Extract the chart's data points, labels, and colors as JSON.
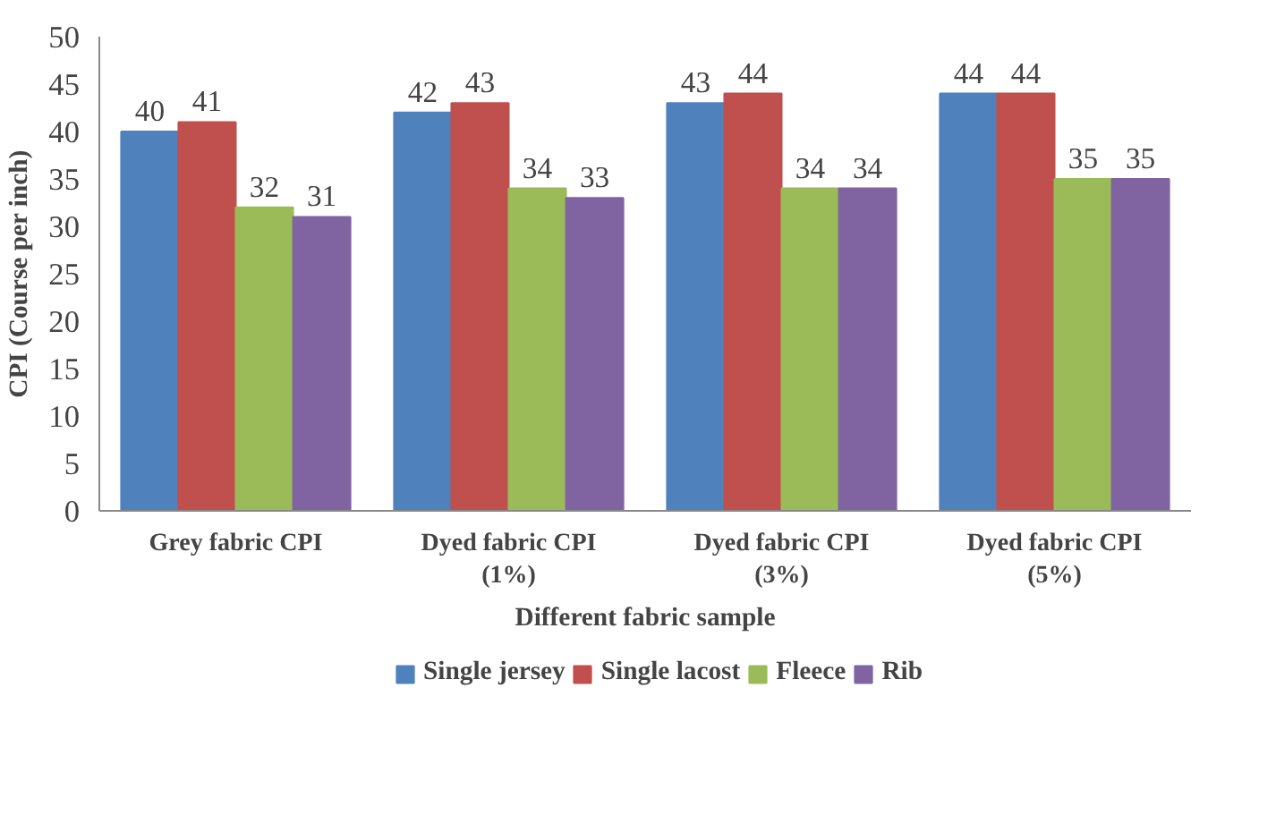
{
  "chart_data": {
    "type": "bar",
    "xlabel": "Different fabric sample",
    "ylabel": "CPI (Course per inch)",
    "categories": [
      "Grey fabric CPI",
      "Dyed fabric CPI (1%)",
      "Dyed fabric CPI (3%)",
      "Dyed fabric CPI (5%)"
    ],
    "series": [
      {
        "name": "Single jersey",
        "color": "#4f81bd",
        "values": [
          40,
          42,
          43,
          44
        ]
      },
      {
        "name": "Single lacost",
        "color": "#c0504d",
        "values": [
          41,
          43,
          44,
          44
        ]
      },
      {
        "name": "Fleece",
        "color": "#9bbb59",
        "values": [
          32,
          34,
          34,
          35
        ]
      },
      {
        "name": "Rib",
        "color": "#8064a2",
        "values": [
          31,
          33,
          34,
          35
        ]
      }
    ],
    "ylim": [
      0,
      50
    ],
    "yticks": [
      0,
      5,
      10,
      15,
      20,
      25,
      30,
      35,
      40,
      45,
      50
    ],
    "data_labels": true,
    "grid": false,
    "legend": "bottom"
  }
}
